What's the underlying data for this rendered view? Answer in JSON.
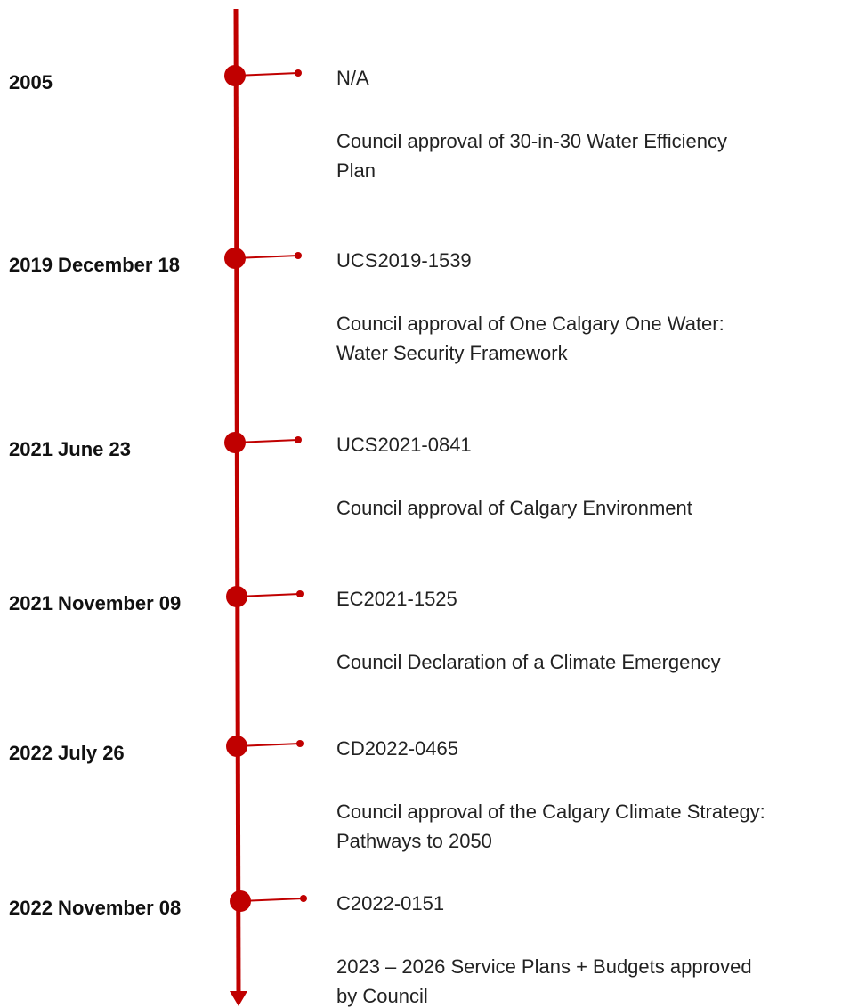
{
  "events": [
    {
      "date": "2005",
      "reference": "N/A",
      "description": [
        "Council approval of 30-in-30 Water Efficiency",
        "Plan"
      ]
    },
    {
      "date": "2019 December 18",
      "reference": "UCS2019-1539",
      "description": [
        "Council approval of One Calgary One Water:",
        "Water Security Framework"
      ]
    },
    {
      "date": "2021 June 23",
      "reference": "UCS2021-0841",
      "description": [
        "Council approval of Calgary Environment"
      ]
    },
    {
      "date": "2021 November 09",
      "reference": "EC2021-1525",
      "description": [
        "Council Declaration of a Climate Emergency"
      ]
    },
    {
      "date": "2022 July 26",
      "reference": "CD2022-0465",
      "description": [
        "Council approval of the Calgary Climate Strategy:",
        "Pathways to 2050"
      ]
    },
    {
      "date": "2022 November 08",
      "reference": "C2022-0151",
      "description": [
        "2023 – 2026 Service Plans + Budgets approved",
        "by Council"
      ]
    }
  ]
}
